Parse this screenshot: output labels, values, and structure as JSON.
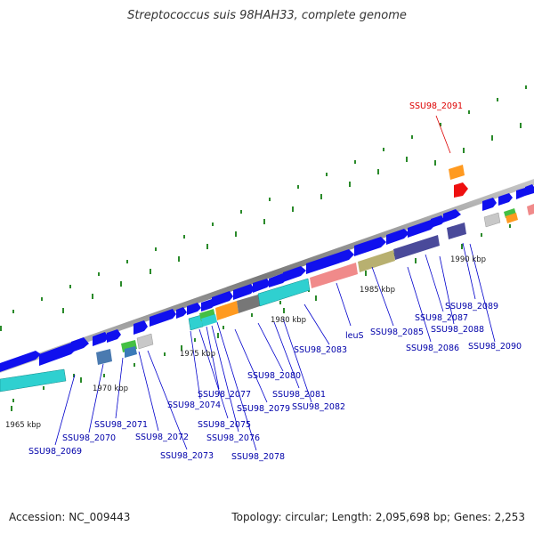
{
  "title": "Streptococcus suis 98HAH33, complete genome",
  "footer": {
    "accession": "Accession: NC_009443",
    "stats": "Topology: circular; Length: 2,095,698 bp; Genes: 2,253"
  },
  "colors": {
    "forward_cds": "#1010ee",
    "backbone": "#888888",
    "tick": "#2a8a2a",
    "label_line": "#0000cc",
    "highlight_label": "#dd0000"
  },
  "ticks": [
    "1965 kbp",
    "1970 kbp",
    "1975 kbp",
    "1980 kbp",
    "1985 kbp",
    "1990 kbp"
  ],
  "labels": {
    "l2069": "SSU98_2069",
    "l2070": "SSU98_2070",
    "l2071": "SSU98_2071",
    "l2072": "SSU98_2072",
    "l2073": "SSU98_2073",
    "l2074": "SSU98_2074",
    "l2075": "SSU98_2075",
    "l2076": "SSU98_2076",
    "l2077": "SSU98_2077",
    "l2078": "SSU98_2078",
    "l2079": "SSU98_2079",
    "l2080": "SSU98_2080",
    "l2081": "SSU98_2081",
    "l2082": "SSU98_2082",
    "l2083": "SSU98_2083",
    "leuS": "leuS",
    "l2085": "SSU98_2085",
    "l2086": "SSU98_2086",
    "l2087": "SSU98_2087",
    "l2088": "SSU98_2088",
    "l2089": "SSU98_2089",
    "l2090": "SSU98_2090",
    "l2091": "SSU98_2091"
  }
}
